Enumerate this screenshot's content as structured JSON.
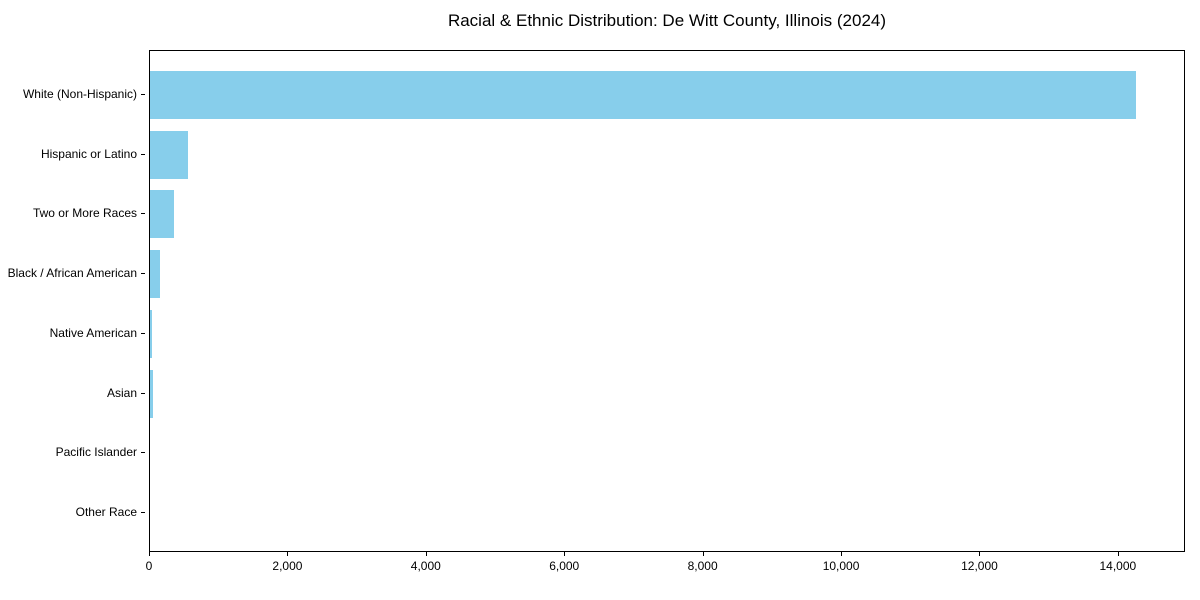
{
  "title": "Racial & Ethnic Distribution: De Witt County, Illinois (2024)",
  "chart_data": {
    "type": "bar",
    "orientation": "horizontal",
    "title": "Racial & Ethnic Distribution: De Witt County, Illinois (2024)",
    "categories": [
      "White (Non-Hispanic)",
      "Hispanic or Latino",
      "Two or More Races",
      "Black / African American",
      "Native American",
      "Asian",
      "Pacific Islander",
      "Other Race"
    ],
    "values": [
      14270,
      545,
      350,
      150,
      35,
      40,
      0,
      0
    ],
    "xlabel": "",
    "ylabel": "",
    "xlim": [
      0,
      14970
    ],
    "xticks": [
      {
        "value": 0,
        "label": "0"
      },
      {
        "value": 2000,
        "label": "2,000"
      },
      {
        "value": 4000,
        "label": "4,000"
      },
      {
        "value": 6000,
        "label": "6,000"
      },
      {
        "value": 8000,
        "label": "8,000"
      },
      {
        "value": 10000,
        "label": "10,000"
      },
      {
        "value": 12000,
        "label": "12,000"
      },
      {
        "value": 14000,
        "label": "14,000"
      }
    ],
    "bar_color": "#87CEEB",
    "axis_color": "#000000",
    "text_color": "#000000",
    "background_color": "#ffffff",
    "grid": false,
    "legend": null
  }
}
